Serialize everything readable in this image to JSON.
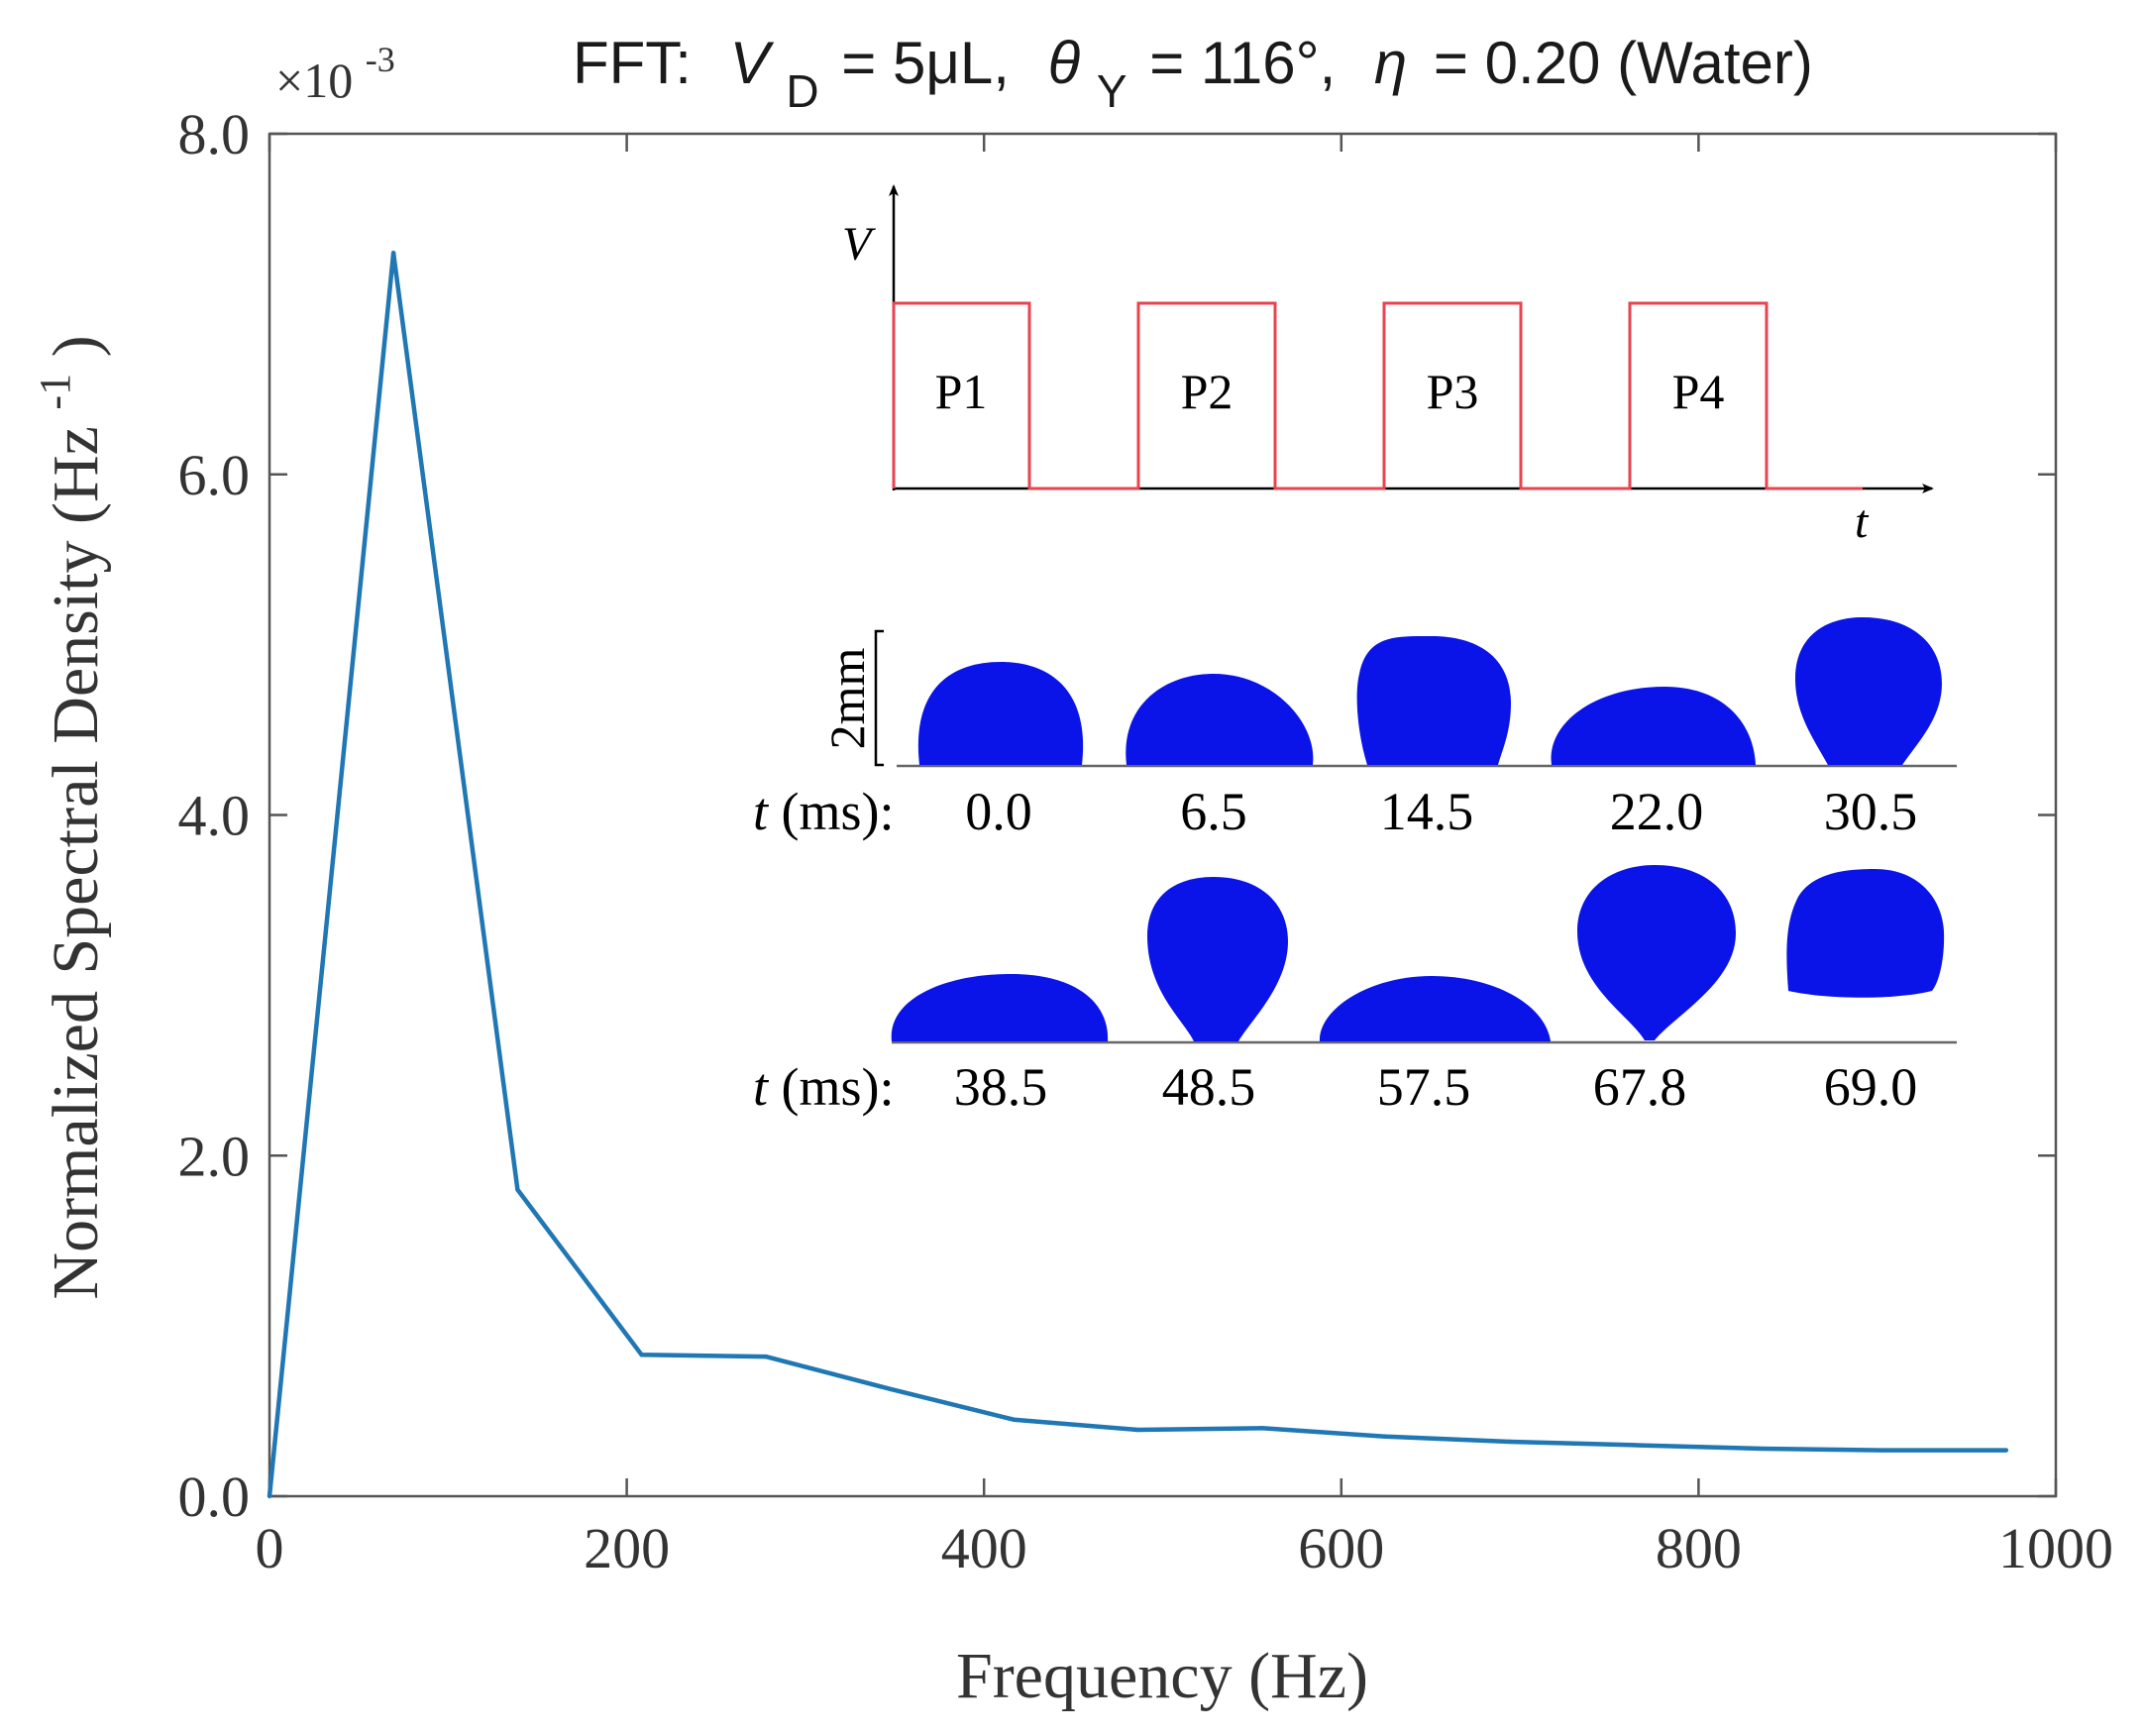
{
  "title": {
    "prefix": "FFT:",
    "vd_var": "V",
    "vd_sub": "D",
    "vd_val": "= 5μL,",
    "theta_var": "θ",
    "theta_sub": "Y",
    "theta_val": "= 116°,",
    "eta_var": "η",
    "eta_val": "= 0.20 (Water)"
  },
  "chart_data": {
    "type": "line",
    "xlabel": "Frequency (Hz)",
    "ylabel_main": "Normalized Spectral Density (Hz",
    "ylabel_sup": "-1",
    "ylabel_close": ")",
    "xlim": [
      0,
      1000
    ],
    "ylim": [
      0,
      8.0
    ],
    "xticks": [
      "0",
      "200",
      "400",
      "600",
      "800",
      "1000"
    ],
    "xtick_values": [
      0,
      200,
      400,
      600,
      800,
      1000
    ],
    "yticks": [
      "0.0",
      "2.0",
      "4.0",
      "6.0",
      "8.0"
    ],
    "ytick_values": [
      0,
      2,
      4,
      6,
      8
    ],
    "y_multiplier_base": "×10",
    "y_multiplier_exp": "-3",
    "series": [
      {
        "name": "FFT spectrum",
        "color": "#1f77b4",
        "x": [
          0,
          69.4,
          138.9,
          208.3,
          277.8,
          347.2,
          416.7,
          486.1,
          555.6,
          625,
          694.4,
          763.9,
          833.3,
          902.8,
          972.2
        ],
        "y": [
          0,
          7.3,
          1.8,
          0.83,
          0.82,
          0.63,
          0.45,
          0.39,
          0.4,
          0.35,
          0.32,
          0.3,
          0.28,
          0.27,
          0.27
        ]
      }
    ]
  },
  "inset_pulse": {
    "y_axis_label": "V",
    "x_axis_label": "t",
    "pulse_color": "#e8434f",
    "pulses": [
      "P1",
      "P2",
      "P3",
      "P4"
    ]
  },
  "inset_droplets": {
    "scale_label": "2mm",
    "droplet_color": "#0a14e8",
    "row1_prefix_var": "t",
    "row1_prefix_unit": "(ms):",
    "row1_times": [
      "0.0",
      "6.5",
      "14.5",
      "22.0",
      "30.5"
    ],
    "row2_prefix_var": "t",
    "row2_prefix_unit": "(ms):",
    "row2_times": [
      "38.5",
      "48.5",
      "57.5",
      "67.8",
      "69.0"
    ]
  }
}
